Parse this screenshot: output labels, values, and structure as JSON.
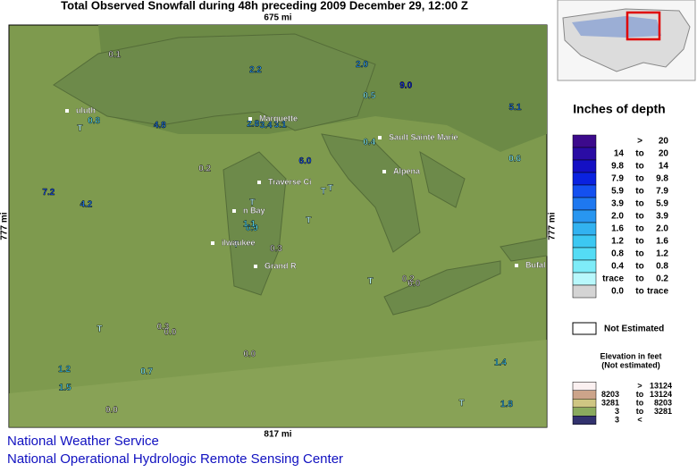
{
  "header": {
    "title": "Total Observed Snowfall during 48h preceding 2009 December 29, 12:00 Z"
  },
  "map": {
    "top_scale": "675 mi",
    "bottom_scale": "817 mi",
    "left_scale": "777 mi",
    "right_scale": "777 mi",
    "cities": [
      "Marquette",
      "Sault Sainte Marie",
      "Alpena",
      "Traverse Ci",
      "n Bay",
      "ilwaukee",
      "Grand R",
      "uluth",
      "Bufal"
    ],
    "stations": [
      "0.3",
      "T",
      "0.9",
      "1.2",
      "T",
      "0.0",
      "2.0",
      "3.1",
      "0.5",
      "T",
      "0.1",
      "1.8",
      "4.2",
      "5.1",
      "T",
      "0.4",
      "0.0",
      "2.8",
      "6.0",
      "T",
      "0.2",
      "1.5",
      "0.7",
      "3.4",
      "T",
      "0.0",
      "0.8",
      "2.2",
      "7.2",
      "T",
      "0.6",
      "1.1",
      "0.0",
      "T",
      "4.8",
      "9.0",
      "0.3",
      "T",
      "1.4",
      "0.2"
    ]
  },
  "legend": {
    "title": "Inches of depth",
    "sep": "to",
    "rows": [
      {
        "op": ">",
        "high": "20",
        "color": "#3c0a8c"
      },
      {
        "low": "14",
        "high": "20",
        "color": "#2a0ca4"
      },
      {
        "low": "9.8",
        "high": "14",
        "color": "#1410c4"
      },
      {
        "low": "7.9",
        "high": "9.8",
        "color": "#0a22e0"
      },
      {
        "low": "5.9",
        "high": "7.9",
        "color": "#1450f0"
      },
      {
        "low": "3.9",
        "high": "5.9",
        "color": "#1e78f0"
      },
      {
        "low": "2.0",
        "high": "3.9",
        "color": "#2896f0"
      },
      {
        "low": "1.6",
        "high": "2.0",
        "color": "#32b2f0"
      },
      {
        "low": "1.2",
        "high": "1.6",
        "color": "#3cc8f2"
      },
      {
        "low": "0.8",
        "high": "1.2",
        "color": "#54dcf5"
      },
      {
        "low": "0.4",
        "high": "0.8",
        "color": "#7eecf8"
      },
      {
        "low": "trace",
        "high": "0.2",
        "color": "#b8f8fc"
      },
      {
        "low": "0.0",
        "high": "trace",
        "color": "#d4d4d4"
      }
    ],
    "not_estimated": "Not Estimated",
    "elevation_title": "Elevation in feet",
    "elevation_subtitle": "(Not estimated)",
    "elevation_rows": [
      {
        "op": ">",
        "high": "13124",
        "color": "#fbf0f0"
      },
      {
        "low": "8203",
        "high": "13124",
        "color": "#cca48a"
      },
      {
        "low": "3281",
        "high": "8203",
        "color": "#cfc683"
      },
      {
        "low": "3",
        "high": "3281",
        "color": "#8aaa5e"
      },
      {
        "low": "3",
        "op": "<",
        "color": "#32326e"
      }
    ]
  },
  "footer": {
    "line1": "National Weather Service",
    "line2": "National Operational Hydrologic Remote Sensing Center"
  }
}
